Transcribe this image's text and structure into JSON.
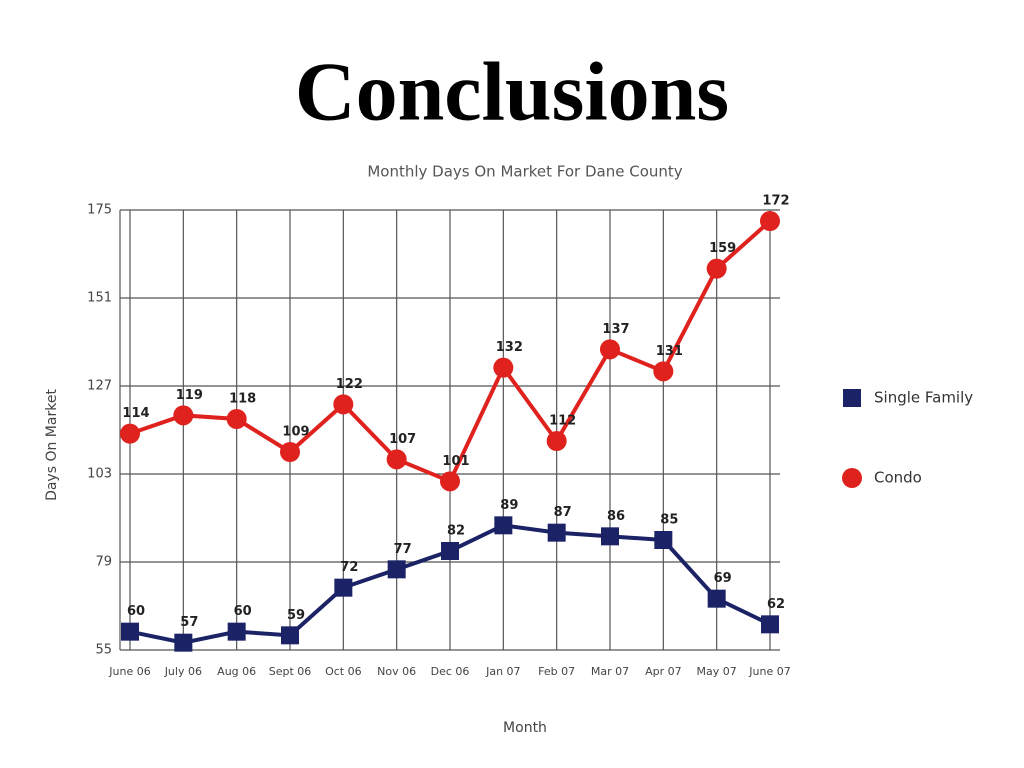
{
  "slide_title": "Conclusions",
  "chart_data": {
    "type": "line",
    "title": "Monthly Days On Market For Dane County",
    "x_label": "Month",
    "y_label": "Days On Market",
    "categories": [
      "June 06",
      "July 06",
      "Aug 06",
      "Sept 06",
      "Oct 06",
      "Nov 06",
      "Dec 06",
      "Jan 07",
      "Feb 07",
      "Mar 07",
      "Apr 07",
      "May 07",
      "June 07"
    ],
    "series": [
      {
        "name": "Single Family",
        "color": "#1b2266",
        "marker": "square",
        "values": [
          60,
          57,
          60,
          59,
          72,
          77,
          82,
          89,
          87,
          86,
          85,
          69,
          62
        ]
      },
      {
        "name": "Condo",
        "color": "#e0221e",
        "marker": "circle",
        "values": [
          114,
          119,
          118,
          109,
          122,
          107,
          101,
          132,
          112,
          137,
          131,
          159,
          172
        ]
      }
    ],
    "ylim": [
      55,
      175
    ],
    "yticks": [
      55,
      79,
      103,
      127,
      151,
      175
    ],
    "grid": true,
    "legend": "right"
  }
}
